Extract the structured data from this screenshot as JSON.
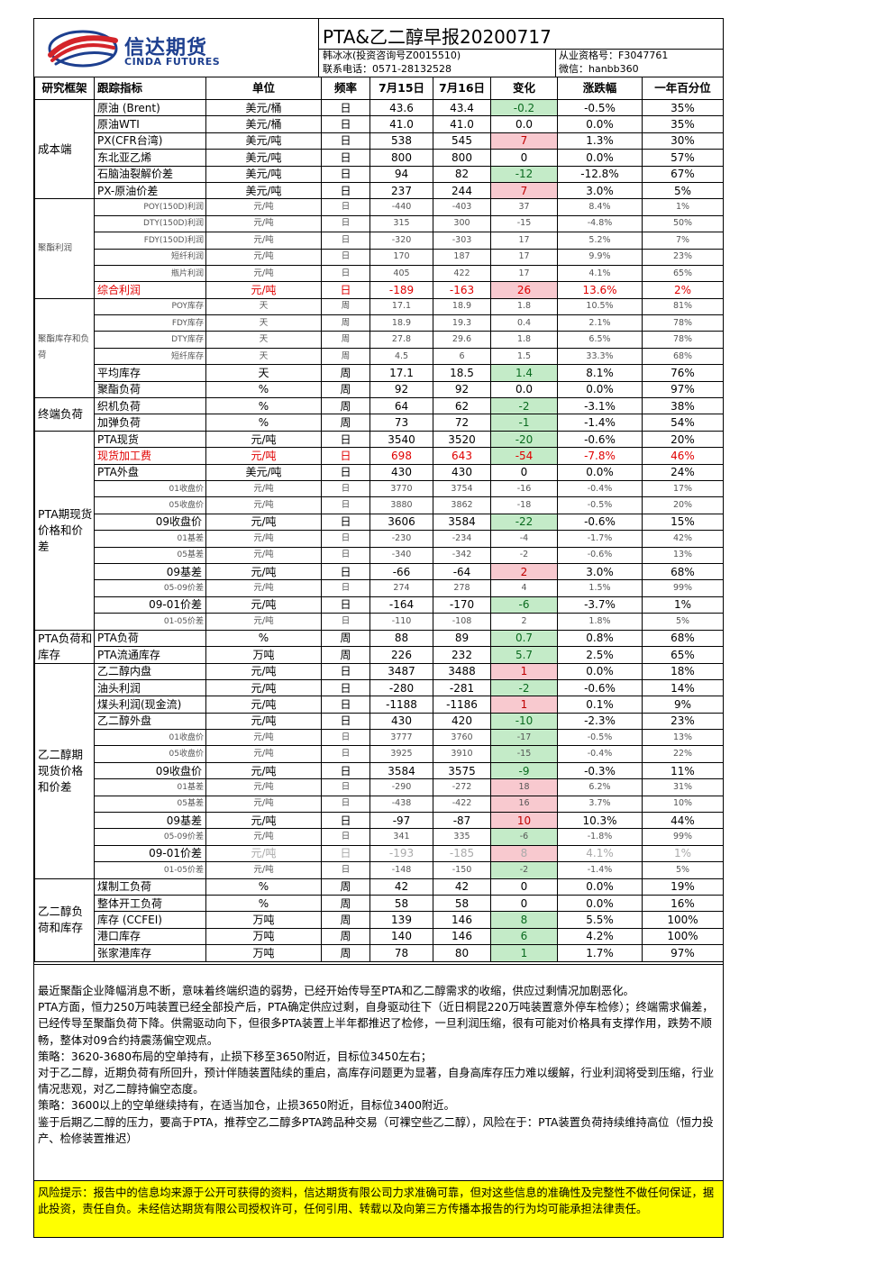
{
  "header": {
    "logo_cn": "信达期货",
    "logo_en": "CINDA FUTURES",
    "title": "PTA&乙二醇早报20200717",
    "analyst": "韩冰冰(投资咨询号Z0015510)",
    "license": "从业资格号：F3047761",
    "phone": "联系电话：0571-28132528",
    "wechat": "微信：hanbb360"
  },
  "colors": {
    "up_bg": "#f8c9cf",
    "down_bg": "#c4ebc8",
    "risk_bg": "#ffff00",
    "brand": "#1d3f8f"
  },
  "columns": [
    "研究框架",
    "跟踪指标",
    "单位",
    "频率",
    "7月15日",
    "7月16日",
    "变化",
    "涨跌幅",
    "一年百分位"
  ],
  "sections": [
    {
      "name": "成本端",
      "rows": [
        {
          "metric": "原油 (Brent)",
          "unit": "美元/桶",
          "freq": "日",
          "d1": "43.6",
          "d2": "43.4",
          "chg": "-0.2",
          "pct": "-0.5%",
          "pctile": "35%",
          "dir": "down"
        },
        {
          "metric": "原油WTI",
          "unit": "美元/桶",
          "freq": "日",
          "d1": "41.0",
          "d2": "41.0",
          "chg": "0.0",
          "pct": "0.0%",
          "pctile": "35%"
        },
        {
          "metric": "PX(CFR台湾)",
          "unit": "美元/吨",
          "freq": "日",
          "d1": "538",
          "d2": "545",
          "chg": "7",
          "pct": "1.3%",
          "pctile": "30%",
          "dir": "up"
        },
        {
          "metric": "东北亚乙烯",
          "unit": "美元/吨",
          "freq": "日",
          "d1": "800",
          "d2": "800",
          "chg": "0",
          "pct": "0.0%",
          "pctile": "57%"
        },
        {
          "metric": "石脑油裂解价差",
          "unit": "美元/吨",
          "freq": "日",
          "d1": "94",
          "d2": "82",
          "chg": "-12",
          "pct": "-12.8%",
          "pctile": "67%",
          "dir": "down"
        },
        {
          "metric": "PX-原油价差",
          "unit": "美元/吨",
          "freq": "日",
          "d1": "237",
          "d2": "244",
          "chg": "7",
          "pct": "3.0%",
          "pctile": "5%",
          "dir": "up"
        }
      ]
    },
    {
      "name": "聚酯利润",
      "rows": [
        {
          "metric": "POY(150D)利润",
          "unit": "元/吨",
          "freq": "日",
          "d1": "-440",
          "d2": "-403",
          "chg": "37",
          "pct": "8.4%",
          "pctile": "1%",
          "style": "small"
        },
        {
          "metric": "DTY(150D)利润",
          "unit": "元/吨",
          "freq": "日",
          "d1": "315",
          "d2": "300",
          "chg": "-15",
          "pct": "-4.8%",
          "pctile": "50%",
          "style": "small"
        },
        {
          "metric": "FDY(150D)利润",
          "unit": "元/吨",
          "freq": "日",
          "d1": "-320",
          "d2": "-303",
          "chg": "17",
          "pct": "5.2%",
          "pctile": "7%",
          "style": "small"
        },
        {
          "metric": "短纤利润",
          "unit": "元/吨",
          "freq": "日",
          "d1": "170",
          "d2": "187",
          "chg": "17",
          "pct": "9.9%",
          "pctile": "23%",
          "style": "small"
        },
        {
          "metric": "瓶片利润",
          "unit": "元/吨",
          "freq": "日",
          "d1": "405",
          "d2": "422",
          "chg": "17",
          "pct": "4.1%",
          "pctile": "65%",
          "style": "small"
        },
        {
          "metric": "综合利润",
          "unit": "元/吨",
          "freq": "日",
          "d1": "-189",
          "d2": "-163",
          "chg": "26",
          "pct": "13.6%",
          "pctile": "2%",
          "style": "red",
          "dir": "up"
        }
      ]
    },
    {
      "name": "聚酯库存和负荷",
      "rows": [
        {
          "metric": "POY库存",
          "unit": "天",
          "freq": "周",
          "d1": "17.1",
          "d2": "18.9",
          "chg": "1.8",
          "pct": "10.5%",
          "pctile": "81%",
          "style": "small"
        },
        {
          "metric": "FDY库存",
          "unit": "天",
          "freq": "周",
          "d1": "18.9",
          "d2": "19.3",
          "chg": "0.4",
          "pct": "2.1%",
          "pctile": "78%",
          "style": "small"
        },
        {
          "metric": "DTY库存",
          "unit": "天",
          "freq": "周",
          "d1": "27.8",
          "d2": "29.6",
          "chg": "1.8",
          "pct": "6.5%",
          "pctile": "78%",
          "style": "small"
        },
        {
          "metric": "短纤库存",
          "unit": "天",
          "freq": "周",
          "d1": "4.5",
          "d2": "6",
          "chg": "1.5",
          "pct": "33.3%",
          "pctile": "68%",
          "style": "small"
        },
        {
          "metric": "平均库存",
          "unit": "天",
          "freq": "周",
          "d1": "17.1",
          "d2": "18.5",
          "chg": "1.4",
          "pct": "8.1%",
          "pctile": "76%",
          "dir": "down"
        },
        {
          "metric": "聚酯负荷",
          "unit": "%",
          "freq": "周",
          "d1": "92",
          "d2": "92",
          "chg": "0.0",
          "pct": "0.0%",
          "pctile": "97%"
        }
      ]
    },
    {
      "name": "终端负荷",
      "rows": [
        {
          "metric": "织机负荷",
          "unit": "%",
          "freq": "周",
          "d1": "64",
          "d2": "62",
          "chg": "-2",
          "pct": "-3.1%",
          "pctile": "38%",
          "dir": "down"
        },
        {
          "metric": "加弹负荷",
          "unit": "%",
          "freq": "周",
          "d1": "73",
          "d2": "72",
          "chg": "-1",
          "pct": "-1.4%",
          "pctile": "54%",
          "dir": "down"
        }
      ]
    },
    {
      "name": "PTA期现货价格和价差",
      "rows": [
        {
          "metric": "PTA现货",
          "unit": "元/吨",
          "freq": "日",
          "d1": "3540",
          "d2": "3520",
          "chg": "-20",
          "pct": "-0.6%",
          "pctile": "20%",
          "dir": "down"
        },
        {
          "metric": "现货加工费",
          "unit": "元/吨",
          "freq": "日",
          "d1": "698",
          "d2": "643",
          "chg": "-54",
          "pct": "-7.8%",
          "pctile": "46%",
          "style": "red",
          "dir": "down"
        },
        {
          "metric": "PTA外盘",
          "unit": "美元/吨",
          "freq": "日",
          "d1": "430",
          "d2": "430",
          "chg": "0",
          "pct": "0.0%",
          "pctile": "24%"
        },
        {
          "metric": "01收盘价",
          "unit": "元/吨",
          "freq": "日",
          "d1": "3770",
          "d2": "3754",
          "chg": "-16",
          "pct": "-0.4%",
          "pctile": "17%",
          "style": "small"
        },
        {
          "metric": "05收盘价",
          "unit": "元/吨",
          "freq": "日",
          "d1": "3880",
          "d2": "3862",
          "chg": "-18",
          "pct": "-0.5%",
          "pctile": "20%",
          "style": "small"
        },
        {
          "metric": "09收盘价",
          "unit": "元/吨",
          "freq": "日",
          "d1": "3606",
          "d2": "3584",
          "chg": "-22",
          "pct": "-0.6%",
          "pctile": "15%",
          "style": "right",
          "dir": "down"
        },
        {
          "metric": "01基差",
          "unit": "元/吨",
          "freq": "日",
          "d1": "-230",
          "d2": "-234",
          "chg": "-4",
          "pct": "-1.7%",
          "pctile": "42%",
          "style": "small"
        },
        {
          "metric": "05基差",
          "unit": "元/吨",
          "freq": "日",
          "d1": "-340",
          "d2": "-342",
          "chg": "-2",
          "pct": "-0.6%",
          "pctile": "13%",
          "style": "small"
        },
        {
          "metric": "09基差",
          "unit": "元/吨",
          "freq": "日",
          "d1": "-66",
          "d2": "-64",
          "chg": "2",
          "pct": "3.0%",
          "pctile": "68%",
          "style": "right",
          "dir": "up"
        },
        {
          "metric": "05-09价差",
          "unit": "元/吨",
          "freq": "日",
          "d1": "274",
          "d2": "278",
          "chg": "4",
          "pct": "1.5%",
          "pctile": "99%",
          "style": "small"
        },
        {
          "metric": "09-01价差",
          "unit": "元/吨",
          "freq": "日",
          "d1": "-164",
          "d2": "-170",
          "chg": "-6",
          "pct": "-3.7%",
          "pctile": "1%",
          "style": "right",
          "dir": "down"
        },
        {
          "metric": "01-05价差",
          "unit": "元/吨",
          "freq": "日",
          "d1": "-110",
          "d2": "-108",
          "chg": "2",
          "pct": "1.8%",
          "pctile": "5%",
          "style": "small"
        }
      ]
    },
    {
      "name": "PTA负荷和库存",
      "rows": [
        {
          "metric": "PTA负荷",
          "unit": "%",
          "freq": "周",
          "d1": "88",
          "d2": "89",
          "chg": "0.7",
          "pct": "0.8%",
          "pctile": "68%",
          "dir": "down"
        },
        {
          "metric": "PTA流通库存",
          "unit": "万吨",
          "freq": "周",
          "d1": "226",
          "d2": "232",
          "chg": "5.7",
          "pct": "2.5%",
          "pctile": "65%",
          "dir": "down"
        }
      ]
    },
    {
      "name": "乙二醇期现货价格和价差",
      "rows": [
        {
          "metric": "乙二醇内盘",
          "unit": "元/吨",
          "freq": "日",
          "d1": "3487",
          "d2": "3488",
          "chg": "1",
          "pct": "0.0%",
          "pctile": "18%",
          "dir": "up"
        },
        {
          "metric": "油头利润",
          "unit": "元/吨",
          "freq": "日",
          "d1": "-280",
          "d2": "-281",
          "chg": "-2",
          "pct": "-0.6%",
          "pctile": "14%",
          "dir": "down"
        },
        {
          "metric": "煤头利润(现金流)",
          "unit": "元/吨",
          "freq": "日",
          "d1": "-1188",
          "d2": "-1186",
          "chg": "1",
          "pct": "0.1%",
          "pctile": "9%",
          "dir": "up"
        },
        {
          "metric": "乙二醇外盘",
          "unit": "元/吨",
          "freq": "日",
          "d1": "430",
          "d2": "420",
          "chg": "-10",
          "pct": "-2.3%",
          "pctile": "23%",
          "dir": "down"
        },
        {
          "metric": "01收盘价",
          "unit": "元/吨",
          "freq": "日",
          "d1": "3777",
          "d2": "3760",
          "chg": "-17",
          "pct": "-0.5%",
          "pctile": "13%",
          "style": "small",
          "dir": "down"
        },
        {
          "metric": "05收盘价",
          "unit": "元/吨",
          "freq": "日",
          "d1": "3925",
          "d2": "3910",
          "chg": "-15",
          "pct": "-0.4%",
          "pctile": "22%",
          "style": "small",
          "dir": "down"
        },
        {
          "metric": "09收盘价",
          "unit": "元/吨",
          "freq": "日",
          "d1": "3584",
          "d2": "3575",
          "chg": "-9",
          "pct": "-0.3%",
          "pctile": "11%",
          "style": "right",
          "dir": "down"
        },
        {
          "metric": "01基差",
          "unit": "元/吨",
          "freq": "日",
          "d1": "-290",
          "d2": "-272",
          "chg": "18",
          "pct": "6.2%",
          "pctile": "31%",
          "style": "small",
          "dir": "up"
        },
        {
          "metric": "05基差",
          "unit": "元/吨",
          "freq": "日",
          "d1": "-438",
          "d2": "-422",
          "chg": "16",
          "pct": "3.7%",
          "pctile": "10%",
          "style": "small",
          "dir": "up"
        },
        {
          "metric": "09基差",
          "unit": "元/吨",
          "freq": "日",
          "d1": "-97",
          "d2": "-87",
          "chg": "10",
          "pct": "10.3%",
          "pctile": "44%",
          "style": "right",
          "dir": "up"
        },
        {
          "metric": "05-09价差",
          "unit": "元/吨",
          "freq": "日",
          "d1": "341",
          "d2": "335",
          "chg": "-6",
          "pct": "-1.8%",
          "pctile": "99%",
          "style": "small",
          "dir": "down"
        },
        {
          "metric": "09-01价差",
          "unit": "元/吨",
          "freq": "日",
          "d1": "-193",
          "d2": "-185",
          "chg": "8",
          "pct": "4.1%",
          "pctile": "1%",
          "style": "gray",
          "dir": "up"
        },
        {
          "metric": "01-05价差",
          "unit": "元/吨",
          "freq": "日",
          "d1": "-148",
          "d2": "-150",
          "chg": "-2",
          "pct": "-1.4%",
          "pctile": "5%",
          "style": "small",
          "dir": "down"
        }
      ]
    },
    {
      "name": "乙二醇负荷和库存",
      "rows": [
        {
          "metric": "煤制工负荷",
          "unit": "%",
          "freq": "周",
          "d1": "42",
          "d2": "42",
          "chg": "0",
          "pct": "0.0%",
          "pctile": "19%"
        },
        {
          "metric": "整体开工负荷",
          "unit": "%",
          "freq": "周",
          "d1": "58",
          "d2": "58",
          "chg": "0",
          "pct": "0.0%",
          "pctile": "16%"
        },
        {
          "metric": "库存 (CCFEI)",
          "unit": "万吨",
          "freq": "周",
          "d1": "139",
          "d2": "146",
          "chg": "8",
          "pct": "5.5%",
          "pctile": "100%",
          "dir": "down"
        },
        {
          "metric": "港口库存",
          "unit": "万吨",
          "freq": "周",
          "d1": "140",
          "d2": "146",
          "chg": "6",
          "pct": "4.2%",
          "pctile": "100%",
          "dir": "down"
        },
        {
          "metric": "张家港库存",
          "unit": "万吨",
          "freq": "周",
          "d1": "78",
          "d2": "80",
          "chg": "1",
          "pct": "1.7%",
          "pctile": "97%",
          "dir": "down"
        }
      ]
    }
  ],
  "commentary": [
    "最近聚酯企业降幅消息不断，意味着终端织造的弱势，已经开始传导至PTA和乙二醇需求的收缩，供应过剩情况加剧恶化。",
    "PTA方面，恒力250万吨装置已经全部投产后，PTA确定供应过剩，自身驱动往下（近日桐昆220万吨装置意外停车检修）；终端需求偏差，已经传导至聚酯负荷下降。供需驱动向下，但很多PTA装置上半年都推迟了检修，一旦利润压缩，很有可能对价格具有支撑作用，跌势不顺畅，整体对09合约持震荡偏空观点。",
    "策略：3620-3680布局的空单持有，止损下移至3650附近，目标位3450左右；",
    "对于乙二醇，近期负荷有所回升，预计伴随装置陆续的重启，高库存问题更为显著，自身高库存压力难以缓解，行业利润将受到压缩，行业情况悲观，对乙二醇持偏空态度。",
    "策略：3600以上的空单继续持有，在适当加仓，止损3650附近，目标位3400附近。",
    "鉴于后期乙二醇的压力，要高于PTA，推荐空乙二醇多PTA跨品种交易（可裸空些乙二醇），风险在于：PTA装置负荷持续维持高位（恒力投产、检修装置推迟）"
  ],
  "risk": "风险提示：报告中的信息均来源于公开可获得的资料，信达期货有限公司力求准确可靠，但对这些信息的准确性及完整性不做任何保证，据此投资，责任自负。未经信达期货有限公司授权许可，任何引用、转载以及向第三方传播本报告的行为均可能承担法律责任。"
}
